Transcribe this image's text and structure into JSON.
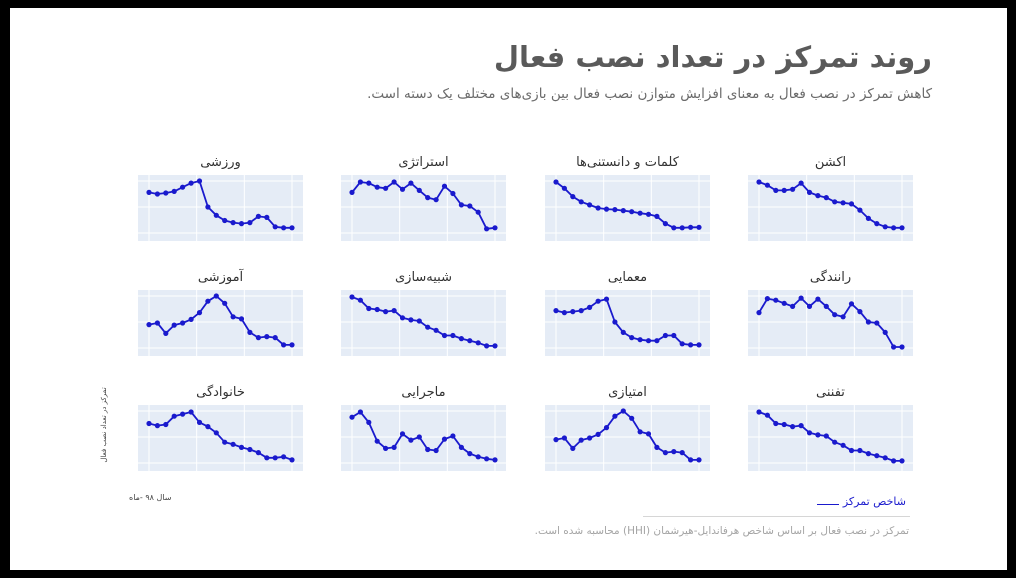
{
  "title": "روند تمرکز در تعداد نصب فعال",
  "subtitle": "کاهش تمرکز در نصب فعال به معنای افزایش متوازن نصب فعال بین بازی‌های مختلف یک دسته است.",
  "y_axis_label": "تمرکز در تعداد نصب فعال",
  "x_axis_label": "سال ۹۸ -ماه",
  "legend_label": "شاخص تمرکز",
  "footnote": "تمرکز در نصب فعال بر اساس شاخص هرفاندایل-هیرشمان (HHI) محاسبه شده است.",
  "colors": {
    "line": "#1a1acd",
    "plot_bg": "#e5ecf6",
    "grid": "#ffffff",
    "background": "#ffffff"
  },
  "chart_data": {
    "type": "line",
    "layout": "small-multiples 3x4",
    "x": [
      1,
      2,
      3,
      4,
      5,
      6,
      7,
      8,
      9,
      10,
      11,
      12,
      13,
      14,
      15,
      16,
      17,
      18
    ],
    "ylim": [
      0,
      1
    ],
    "grid": true,
    "legend_placement": "bottom-right",
    "series": [
      {
        "name": "اکشن",
        "values": [
          0.98,
          0.92,
          0.82,
          0.82,
          0.84,
          0.96,
          0.78,
          0.72,
          0.68,
          0.6,
          0.58,
          0.56,
          0.44,
          0.28,
          0.18,
          0.12,
          0.1,
          0.1
        ]
      },
      {
        "name": "کلمات و دانستنی‌ها",
        "values": [
          0.98,
          0.86,
          0.7,
          0.6,
          0.54,
          0.48,
          0.46,
          0.45,
          0.43,
          0.41,
          0.38,
          0.36,
          0.32,
          0.18,
          0.1,
          0.1,
          0.11,
          0.11
        ]
      },
      {
        "name": "استراتژی",
        "values": [
          0.78,
          0.98,
          0.96,
          0.88,
          0.86,
          0.98,
          0.84,
          0.96,
          0.82,
          0.68,
          0.64,
          0.9,
          0.76,
          0.54,
          0.52,
          0.4,
          0.08,
          0.1
        ]
      },
      {
        "name": "ورزشی",
        "values": [
          0.78,
          0.75,
          0.77,
          0.8,
          0.88,
          0.96,
          1.0,
          0.5,
          0.34,
          0.24,
          0.2,
          0.18,
          0.2,
          0.32,
          0.3,
          0.12,
          0.1,
          0.1
        ]
      },
      {
        "name": "رانندگی",
        "values": [
          0.68,
          0.95,
          0.92,
          0.86,
          0.8,
          0.96,
          0.8,
          0.94,
          0.8,
          0.64,
          0.6,
          0.85,
          0.7,
          0.5,
          0.48,
          0.3,
          0.02,
          0.02
        ]
      },
      {
        "name": "معمایی",
        "values": [
          0.72,
          0.68,
          0.7,
          0.72,
          0.78,
          0.9,
          0.94,
          0.5,
          0.3,
          0.2,
          0.16,
          0.14,
          0.14,
          0.24,
          0.24,
          0.08,
          0.06,
          0.06
        ]
      },
      {
        "name": "شبیه‌سازی",
        "values": [
          0.98,
          0.92,
          0.76,
          0.74,
          0.7,
          0.72,
          0.58,
          0.54,
          0.52,
          0.4,
          0.34,
          0.24,
          0.24,
          0.18,
          0.14,
          0.1,
          0.04,
          0.04
        ]
      },
      {
        "name": "آموزشی",
        "values": [
          0.45,
          0.48,
          0.28,
          0.44,
          0.48,
          0.55,
          0.68,
          0.9,
          1.0,
          0.86,
          0.6,
          0.56,
          0.3,
          0.2,
          0.22,
          0.2,
          0.06,
          0.06
        ]
      },
      {
        "name": "تفننی",
        "values": [
          0.98,
          0.92,
          0.76,
          0.74,
          0.7,
          0.72,
          0.58,
          0.54,
          0.52,
          0.4,
          0.34,
          0.24,
          0.24,
          0.18,
          0.14,
          0.1,
          0.04,
          0.04
        ]
      },
      {
        "name": "امتیازی",
        "values": [
          0.45,
          0.48,
          0.28,
          0.44,
          0.48,
          0.55,
          0.68,
          0.9,
          1.0,
          0.86,
          0.6,
          0.56,
          0.3,
          0.2,
          0.22,
          0.2,
          0.06,
          0.06
        ]
      },
      {
        "name": "ماجرایی",
        "values": [
          0.88,
          0.98,
          0.78,
          0.42,
          0.28,
          0.3,
          0.56,
          0.44,
          0.5,
          0.26,
          0.24,
          0.46,
          0.52,
          0.3,
          0.18,
          0.12,
          0.08,
          0.06
        ]
      },
      {
        "name": "خانوادگی",
        "values": [
          0.76,
          0.72,
          0.74,
          0.9,
          0.94,
          0.98,
          0.78,
          0.7,
          0.58,
          0.4,
          0.36,
          0.3,
          0.26,
          0.2,
          0.1,
          0.1,
          0.12,
          0.06
        ]
      }
    ]
  }
}
